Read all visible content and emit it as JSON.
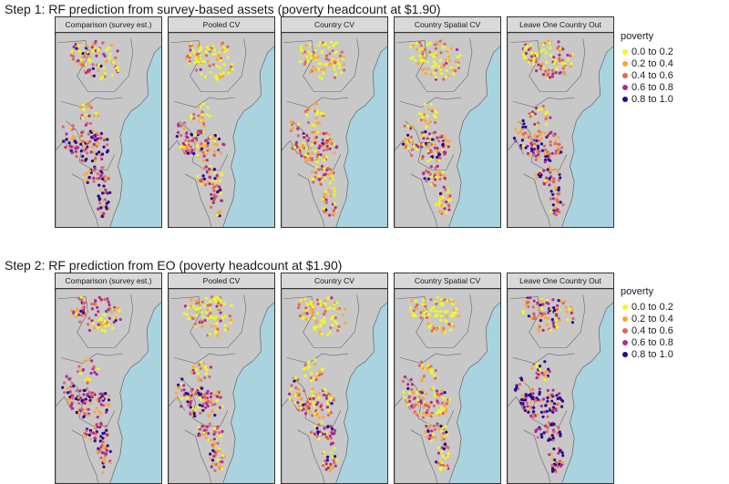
{
  "rows": [
    {
      "title": "Step 1: RF prediction from survey-based assets (poverty headcount at $1.90)",
      "panels": [
        {
          "label": "Comparison (survey est.)",
          "bias": 0.55,
          "seed": 11
        },
        {
          "label": "Pooled CV",
          "bias": 0.35,
          "seed": 12
        },
        {
          "label": "Country CV",
          "bias": 0.3,
          "seed": 13
        },
        {
          "label": "Country Spatial CV",
          "bias": 0.32,
          "seed": 14
        },
        {
          "label": "Leave One Country Out",
          "bias": 0.5,
          "seed": 15
        }
      ]
    },
    {
      "title": "Step 2: RF prediction from EO (poverty headcount at $1.90)",
      "panels": [
        {
          "label": "Comparison (survey est.)",
          "bias": 0.55,
          "seed": 21
        },
        {
          "label": "Pooled CV",
          "bias": 0.38,
          "seed": 22
        },
        {
          "label": "Country CV",
          "bias": 0.33,
          "seed": 23
        },
        {
          "label": "Country Spatial CV",
          "bias": 0.3,
          "seed": 24
        },
        {
          "label": "Leave One Country Out",
          "bias": 0.62,
          "seed": 25
        }
      ]
    }
  ],
  "legend": {
    "title": "poverty",
    "items": [
      {
        "label": "0.0 to 0.2",
        "color": "#f0f921"
      },
      {
        "label": "0.2 to 0.4",
        "color": "#fca636"
      },
      {
        "label": "0.4 to 0.6",
        "color": "#e16462"
      },
      {
        "label": "0.6 to 0.8",
        "color": "#b12a90"
      },
      {
        "label": "0.8 to 1.0",
        "color": "#2a0593"
      }
    ]
  },
  "colors": {
    "water": "#a9d3df",
    "land": "#c8c8c8",
    "strip": "#d9d9d9"
  }
}
